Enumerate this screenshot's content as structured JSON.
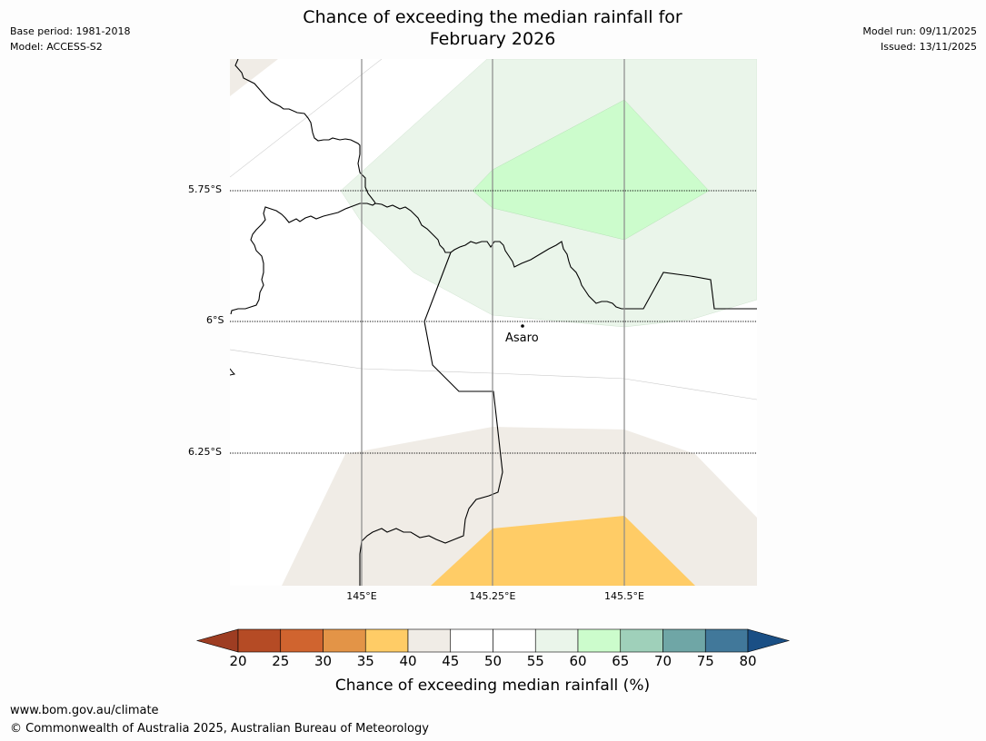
{
  "header": {
    "title_line1": "Chance of exceeding the median rainfall for",
    "title_line2": "February 2026",
    "base_period": "Base period: 1981-2018",
    "model": "Model: ACCESS-S2",
    "model_run": "Model run: 09/11/2025",
    "issued": "Issued: 13/11/2025"
  },
  "map": {
    "lat_labels": [
      "5.75°S",
      "6°S",
      "6.25°S"
    ],
    "lon_labels": [
      "145°E",
      "145.25°E",
      "145.5°E"
    ],
    "place": "Asaro",
    "zones": [
      {
        "category": "40-45",
        "color": "#f0ece6"
      },
      {
        "category": "55-60",
        "color": "#eaf5ea"
      },
      {
        "category": "60-65",
        "color": "#ccfccc"
      },
      {
        "category": "35-40",
        "color": "#ffcc66"
      }
    ]
  },
  "colorbar": {
    "label": "Chance of exceeding median rainfall (%)",
    "ticks": [
      "20",
      "25",
      "30",
      "35",
      "40",
      "45",
      "50",
      "55",
      "60",
      "65",
      "70",
      "75",
      "80"
    ],
    "colors": [
      "#9e3d22",
      "#b54b25",
      "#d0642f",
      "#e39447",
      "#ffcc66",
      "#f0ece6",
      "#ffffff",
      "#ffffff",
      "#eaf5ea",
      "#ccfccc",
      "#9fd0ba",
      "#6fa6a6",
      "#41789a",
      "#1a4f85"
    ]
  },
  "footer": {
    "url": "www.bom.gov.au/climate",
    "copyright": "© Commonwealth of Australia 2025, Australian Bureau of Meteorology"
  }
}
